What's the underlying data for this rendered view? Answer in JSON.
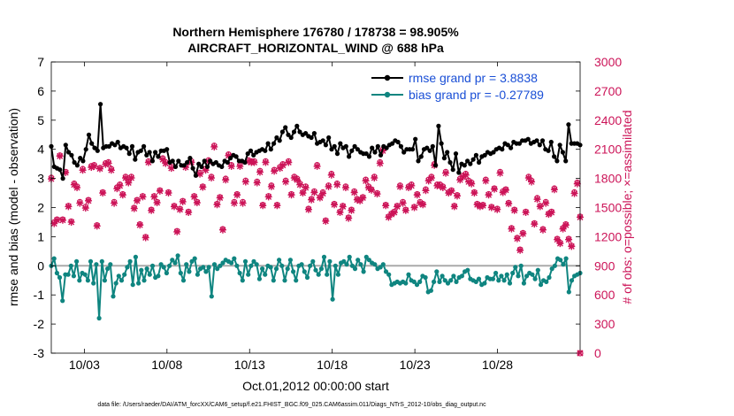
{
  "chart_data": {
    "type": "line",
    "title": "Northern Hemisphere 176780 / 178738 = 98.905%",
    "subtitle": "AIRCRAFT_HORIZONTAL_WIND @ 688 hPa",
    "xlabel": "Oct.01,2012 00:00:00 start",
    "ylabel": "rmse and bias (model - observation)",
    "y2label": "# of obs: o=possible; ×=assimilated",
    "footnote": "data file: /Users/raeder/DAI/ATM_forcXX/CAM6_setup/f.e21.FHIST_BGC.f09_025.CAM6assim.011/Diags_NTrS_2012-10/obs_diag_output.nc",
    "xlim": [
      1,
      33
    ],
    "ylim": [
      -3,
      7
    ],
    "y2lim": [
      0,
      3000
    ],
    "xticks": [
      3,
      8,
      13,
      18,
      23,
      28
    ],
    "xticklabels": [
      "10/03",
      "10/08",
      "10/13",
      "10/18",
      "10/23",
      "10/28"
    ],
    "yticks": [
      -3,
      -2,
      -1,
      0,
      1,
      2,
      3,
      4,
      5,
      6,
      7
    ],
    "y2ticks": [
      0,
      300,
      600,
      900,
      1200,
      1500,
      1800,
      2100,
      2400,
      2700,
      3000
    ],
    "legend": [
      {
        "label": "rmse grand pr = 3.8838",
        "color": "#000000"
      },
      {
        "label": "bias grand pr = -0.27789",
        "color": "#0f8580"
      }
    ],
    "colors": {
      "rmse": "#000000",
      "bias": "#0f8580",
      "obs": "#cc1458",
      "zero_line": "#aaaaaa"
    },
    "series": [
      {
        "name": "rmse",
        "values": [
          4.1,
          3.4,
          3.35,
          3.3,
          3.0,
          4.15,
          3.9,
          3.8,
          3.55,
          3.45,
          3.7,
          3.6,
          4.0,
          4.5,
          4.2,
          4.05,
          3.95,
          5.55,
          4.05,
          4.1,
          4.1,
          4.2,
          4.15,
          4.25,
          4.05,
          4.1,
          4.05,
          3.85,
          4.1,
          3.65,
          3.9,
          3.95,
          4.1,
          3.8,
          3.9,
          3.6,
          3.9,
          3.75,
          3.95,
          3.95,
          4.0,
          3.55,
          3.6,
          3.4,
          3.6,
          3.45,
          3.45,
          3.55,
          3.7,
          3.35,
          3.1,
          3.5,
          3.4,
          3.6,
          3.4,
          3.6,
          3.5,
          3.55,
          3.45,
          3.4,
          3.6,
          3.55,
          3.7,
          3.8,
          3.75,
          3.6,
          3.6,
          3.55,
          3.85,
          3.95,
          3.8,
          3.9,
          3.95,
          4.0,
          3.95,
          4.2,
          4.0,
          4.2,
          4.4,
          4.3,
          4.6,
          4.75,
          4.5,
          4.4,
          4.6,
          4.8,
          4.6,
          4.5,
          4.55,
          4.45,
          4.4,
          4.55,
          4.2,
          4.25,
          4.3,
          4.15,
          4.4,
          4.0,
          4.1,
          3.85,
          4.2,
          4.05,
          4.1,
          3.75,
          3.95,
          4.1,
          4.0,
          3.9,
          3.85,
          3.85,
          3.75,
          4.05,
          3.9,
          4.1,
          3.8,
          4.1,
          4.05,
          4.15,
          4.2,
          4.3,
          4.25,
          4.1,
          3.9,
          4.0,
          4.0,
          4.0,
          4.35,
          3.6,
          3.75,
          4.0,
          4.05,
          3.95,
          4.1,
          3.45,
          4.8,
          4.2,
          3.7,
          3.9,
          3.55,
          3.3,
          3.85,
          3.2,
          3.5,
          3.45,
          3.6,
          3.5,
          3.65,
          3.8,
          3.55,
          3.75,
          3.8,
          3.9,
          3.85,
          3.9,
          4.0,
          4.05,
          4.0,
          4.2,
          4.15,
          4.05,
          4.25,
          4.2,
          4.2,
          4.3,
          4.3,
          4.35,
          4.2,
          4.25,
          4.3,
          4.15,
          4.3,
          4.0,
          3.95,
          4.25,
          3.75,
          3.6,
          4.15,
          3.9,
          3.6,
          4.85,
          4.2,
          4.2,
          4.2,
          4.15
        ]
      },
      {
        "name": "bias",
        "values": [
          0.0,
          0.25,
          -0.25,
          -0.4,
          -1.2,
          -0.3,
          -0.3,
          0.0,
          -0.35,
          0.15,
          -0.5,
          -0.25,
          -0.3,
          -0.5,
          0.15,
          -0.6,
          0.05,
          -1.8,
          0.15,
          -0.5,
          -0.1,
          0.05,
          -1.05,
          -0.6,
          -0.35,
          -0.5,
          -0.3,
          -0.05,
          0.15,
          -0.65,
          0.3,
          -0.6,
          -0.15,
          -0.5,
          -0.1,
          -0.3,
          0.0,
          -0.4,
          -0.35,
          0.05,
          -0.05,
          -0.25,
          0.0,
          0.2,
          0.1,
          0.35,
          -0.25,
          -0.5,
          0.05,
          -0.2,
          0.15,
          0.25,
          -0.3,
          -0.1,
          -0.05,
          -0.2,
          -0.05,
          -1.05,
          0.05,
          -0.1,
          0.0,
          0.1,
          0.2,
          0.15,
          0.1,
          0.25,
          0.0,
          -0.25,
          -0.5,
          0.15,
          -0.3,
          0.0,
          0.15,
          0.05,
          -0.45,
          -0.1,
          -0.3,
          0.0,
          -0.05,
          -0.5,
          -0.1,
          0.2,
          0.0,
          -0.5,
          -0.1,
          0.2,
          -0.2,
          -0.5,
          0.0,
          0.05,
          -0.2,
          -0.4,
          0.0,
          0.15,
          -0.15,
          -0.3,
          -0.1,
          0.3,
          -0.3,
          0.15,
          -1.15,
          0.0,
          -0.3,
          0.1,
          0.15,
          0.05,
          0.3,
          0.0,
          -0.1,
          0.2,
          0.05,
          -0.2,
          0.3,
          0.2,
          0.1,
          0.05,
          -0.1,
          -0.05,
          0.05,
          -0.2,
          -0.3,
          -0.65,
          -0.6,
          -0.55,
          -0.6,
          -0.55,
          -0.6,
          -0.3,
          -0.5,
          -0.55,
          -0.65,
          -0.55,
          -0.35,
          -0.4,
          -0.9,
          -0.85,
          -0.55,
          -0.2,
          -0.55,
          -0.35,
          -0.5,
          -0.6,
          -0.5,
          -0.35,
          -0.55,
          -0.4,
          -0.35,
          -0.2,
          -0.15,
          -0.45,
          -0.5,
          -0.55,
          -0.45,
          -0.65,
          -0.6,
          -0.4,
          -0.45,
          -0.45,
          -0.25,
          -0.5,
          -0.35,
          -0.5,
          -0.3,
          -0.6,
          -0.25,
          -0.05,
          -0.35,
          0.0,
          -0.6,
          -0.35,
          -0.25,
          -0.3,
          -0.45,
          -0.15,
          -0.65,
          -0.5,
          -0.55,
          -0.4,
          -0.1,
          0.0,
          0.25,
          0.2,
          0.05,
          0.25,
          -0.9,
          -0.5,
          -0.35,
          -0.3,
          -0.25
        ]
      },
      {
        "name": "obs_possible",
        "values": [
          1810,
          1350,
          1380,
          2040,
          1380,
          1870,
          1520,
          1360,
          1750,
          1720,
          1560,
          1900,
          1510,
          1580,
          1930,
          1940,
          1320,
          1910,
          1660,
          1960,
          1970,
          1900,
          1560,
          1710,
          1740,
          1640,
          1820,
          1770,
          1820,
          1500,
          1580,
          1330,
          1620,
          1200,
          1980,
          1480,
          1620,
          1560,
          1680,
          2010,
          1970,
          1660,
          1920,
          1520,
          1260,
          1490,
          1570,
          1930,
          1460,
          1980,
          1620,
          1560,
          1860,
          1720,
          1900,
          1990,
          1820,
          2140,
          1540,
          1610,
          1280,
          1800,
          2050,
          1940,
          1560,
          1640,
          1940,
          1560,
          1780,
          1990,
          1980,
          1980,
          1770,
          1880,
          1530,
          1980,
          1620,
          1730,
          1890,
          1530,
          1920,
          1950,
          1780,
          1980,
          1640,
          1820,
          1800,
          1750,
          1660,
          1720,
          1490,
          1590,
          1670,
          1940,
          1610,
          1660,
          1370,
          1730,
          1850,
          1540,
          1750,
          1460,
          1520,
          1720,
          1400,
          1480,
          1670,
          1590,
          1580,
          1610,
          1790,
          1720,
          1690,
          1820,
          1650,
          1970,
          2100,
          1530,
          1410,
          1440,
          1460,
          1520,
          1730,
          1560,
          1480,
          1720,
          1740,
          1510,
          1640,
          1560,
          1540,
          1690,
          1790,
          1820,
          1950,
          1740,
          1740,
          1720,
          1870,
          1660,
          1680,
          1520,
          1630,
          1800,
          1830,
          1850,
          1780,
          1760,
          1660,
          1540,
          1520,
          1530,
          1790,
          1640,
          1510,
          1700,
          1490,
          1870,
          1670,
          1690,
          1550,
          1290,
          1480,
          1190,
          1070,
          1240,
          1460,
          1820,
          1780,
          1340,
          1600,
          1520,
          1280,
          1560,
          1440,
          1460,
          1700,
          1180,
          1140,
          1290,
          1330,
          1180,
          1110,
          1660,
          1760,
          1410
        ]
      },
      {
        "name": "obs_assimilated",
        "values": [
          1795,
          1335,
          1370,
          2030,
          1370,
          1860,
          1510,
          1350,
          1735,
          1705,
          1545,
          1885,
          1495,
          1570,
          1915,
          1925,
          1310,
          1900,
          1650,
          1945,
          1955,
          1885,
          1545,
          1695,
          1725,
          1630,
          1805,
          1755,
          1805,
          1490,
          1570,
          1320,
          1610,
          1190,
          1965,
          1470,
          1610,
          1550,
          1670,
          1995,
          1955,
          1650,
          1905,
          1510,
          1250,
          1480,
          1560,
          1915,
          1450,
          1965,
          1610,
          1550,
          1845,
          1710,
          1885,
          1975,
          1805,
          2125,
          1530,
          1600,
          1270,
          1785,
          2035,
          1925,
          1545,
          1630,
          1925,
          1545,
          1765,
          1975,
          1965,
          1965,
          1755,
          1865,
          1520,
          1965,
          1610,
          1715,
          1875,
          1520,
          1905,
          1935,
          1765,
          1965,
          1630,
          1805,
          1785,
          1735,
          1650,
          1705,
          1480,
          1580,
          1655,
          1925,
          1600,
          1645,
          1360,
          1715,
          1835,
          1530,
          1735,
          1450,
          1510,
          1705,
          1390,
          1470,
          1655,
          1580,
          1570,
          1600,
          1775,
          1705,
          1680,
          1805,
          1640,
          1955,
          2085,
          1520,
          1400,
          1430,
          1450,
          1510,
          1715,
          1545,
          1470,
          1705,
          1725,
          1500,
          1630,
          1545,
          1530,
          1675,
          1775,
          1805,
          1935,
          1725,
          1725,
          1705,
          1855,
          1650,
          1670,
          1510,
          1620,
          1785,
          1815,
          1835,
          1765,
          1745,
          1650,
          1530,
          1510,
          1520,
          1775,
          1630,
          1500,
          1690,
          1480,
          1855,
          1655,
          1680,
          1540,
          1280,
          1470,
          1180,
          1060,
          1230,
          1450,
          1805,
          1765,
          1330,
          1585,
          1510,
          1270,
          1545,
          1430,
          1450,
          1685,
          1170,
          1130,
          1280,
          1320,
          1170,
          1100,
          1645,
          1745,
          1400
        ]
      }
    ]
  }
}
